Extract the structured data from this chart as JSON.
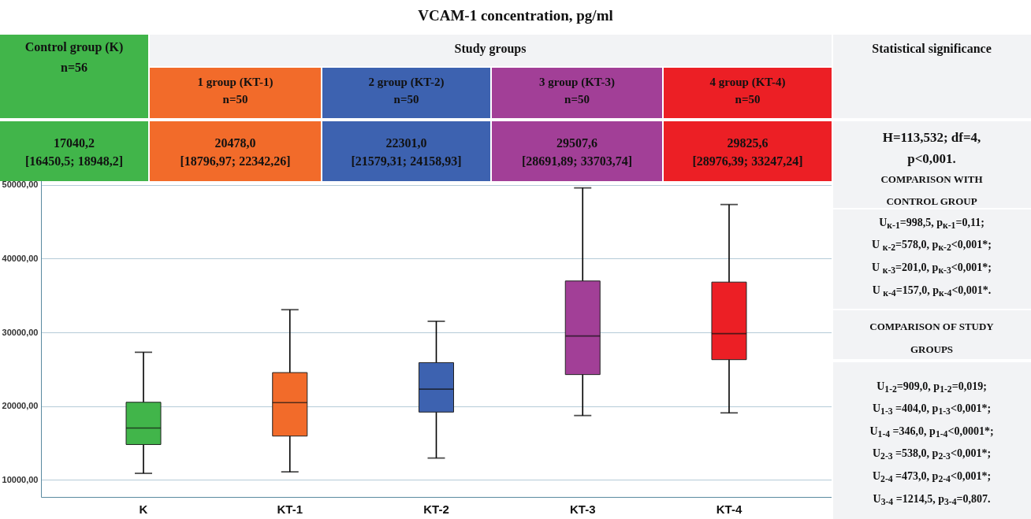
{
  "chart_data": {
    "type": "box",
    "title": "VCAM-1 concentration, pg/ml",
    "categories": [
      "K",
      "KT-1",
      "KT-2",
      "KT-3",
      "KT-4"
    ],
    "colors": [
      "#41b54a",
      "#f26b2a",
      "#3d62b0",
      "#a23f97",
      "#ec1f25"
    ],
    "boxes": [
      {
        "low": 10900,
        "q1": 14800,
        "median": 17040,
        "q3": 20530,
        "high": 27300
      },
      {
        "low": 11100,
        "q1": 15950,
        "median": 20478,
        "q3": 24550,
        "high": 33070
      },
      {
        "low": 12970,
        "q1": 19200,
        "median": 22301,
        "q3": 25900,
        "high": 31500
      },
      {
        "low": 18730,
        "q1": 24280,
        "median": 29508,
        "q3": 36960,
        "high": 49570
      },
      {
        "low": 19090,
        "q1": 26300,
        "median": 29826,
        "q3": 36810,
        "high": 47320
      }
    ],
    "ylim": [
      7700,
      50700
    ],
    "yticks": [
      {
        "value": 10000,
        "label": "10000,00"
      },
      {
        "value": 20000,
        "label": "20000,00"
      },
      {
        "value": 30000,
        "label": "30000,00"
      },
      {
        "value": 40000,
        "label": "40000,00"
      },
      {
        "value": 50000,
        "label": "50000,00"
      }
    ],
    "grid": "y",
    "annotations": [
      "Control group (K)",
      "n=56",
      "Study groups",
      "Statistical significance",
      "1 group (KT-1)",
      "n=50",
      "2 group (KT-2)",
      "n=50",
      "3 group (KT-3)",
      "n=50",
      "4 group (KT-4)",
      "n=50",
      "17040,2",
      "[16450,5; 18948,2]",
      "20478,0",
      "[18796,97; 22342,26]",
      "22301,0",
      "[21579,31; 24158,93]",
      "29507,6",
      "[28691,89; 33703,74]",
      "29825,6",
      "[28976,39; 33247,24]",
      "H=113,532; df=4,",
      "p<0,001.",
      "COMPARISON WITH",
      "CONTROL GROUP",
      "U$_{к-1}$=998,5, p$_{к-1}$=0,11;",
      "U $_{к-2}$=578,0, p$_{к-2}$<0,001*;",
      "U $_{к-3}$=201,0, p$_{к-3}$<0,001*;",
      "U $_{к-4}$=157,0, p$_{к-4}$<0,001*.",
      "COMPARISON OF STUDY",
      "GROUPS",
      "U$_{1-2}$=909,0, p$_{1-2}$=0,019;",
      "U$_{1-3}$ =404,0, p$_{1-3}$<0,001*;",
      "U$_{1-4}$ =346,0, p$_{1-4}$<0,0001*;",
      "U$_{2-3}$ =538,0, p$_{2-3}$<0,001*;",
      "U$_{2-4}$ =473,0, p$_{2-4}$<0,001*;",
      "U$_{3-4}$ =1214,5, p$_{3-4}$=0,807."
    ]
  }
}
